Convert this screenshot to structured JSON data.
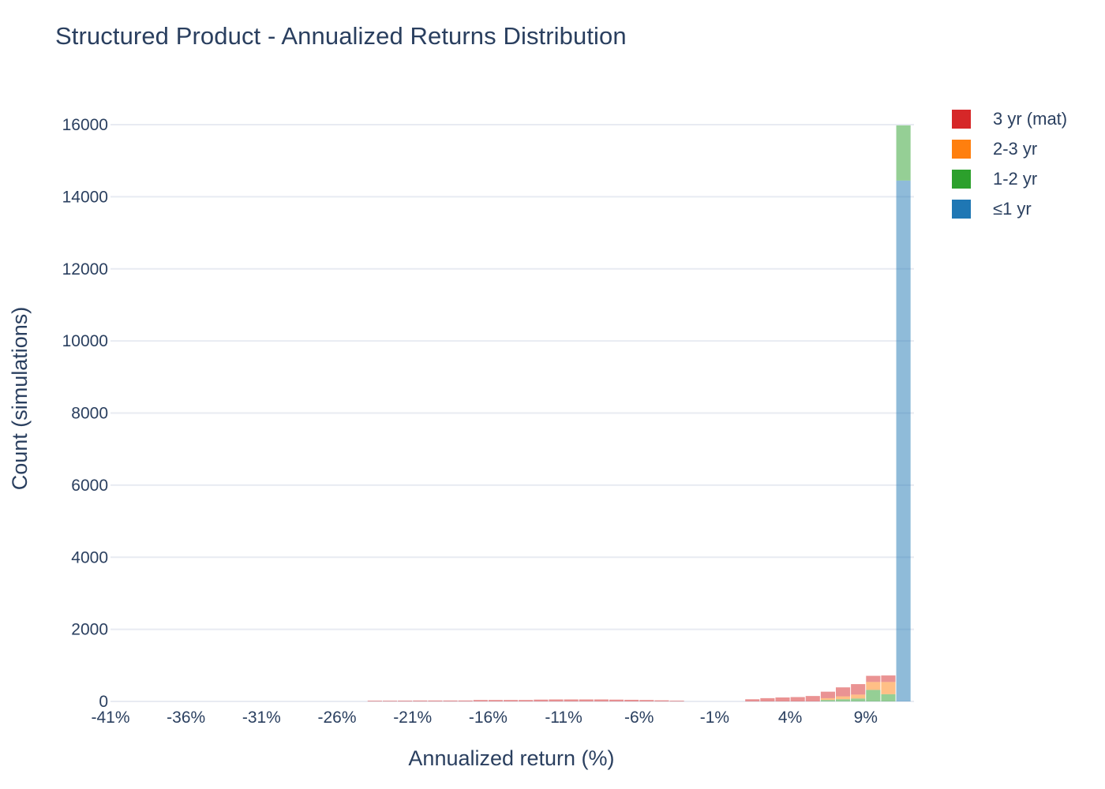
{
  "chart_data": {
    "type": "bar",
    "mode": "stacked-histogram",
    "title": "Structured Product - Annualized Returns Distribution",
    "xlabel": "Annualized return (%)",
    "ylabel": "Count (simulations)",
    "ylim": [
      0,
      16000
    ],
    "yticks": [
      0,
      2000,
      4000,
      6000,
      8000,
      10000,
      12000,
      14000,
      16000
    ],
    "xticks": [
      "-41%",
      "-36%",
      "-31%",
      "-26%",
      "-21%",
      "-16%",
      "-11%",
      "-6%",
      "-1%",
      "4%",
      "9%"
    ],
    "xtick_values": [
      -41,
      -36,
      -31,
      -26,
      -21,
      -16,
      -11,
      -6,
      -1,
      4,
      9
    ],
    "xlim": [
      -41,
      12.2
    ],
    "bin_width": 1,
    "bin_starts": [
      -24,
      -23,
      -22,
      -21,
      -20,
      -19,
      -18,
      -17,
      -16,
      -15,
      -14,
      -13,
      -12,
      -11,
      -10,
      -9,
      -8,
      -7,
      -6,
      -5,
      -4,
      -3,
      -2,
      -1,
      0,
      1,
      2,
      3,
      4,
      5,
      6,
      7,
      8,
      9,
      10,
      11
    ],
    "grid": true,
    "legend_position": "top-right",
    "series": [
      {
        "name": "≤1 yr",
        "color": "#1f77b4",
        "values": [
          0,
          0,
          0,
          0,
          0,
          0,
          0,
          0,
          0,
          0,
          0,
          0,
          0,
          0,
          0,
          0,
          0,
          0,
          0,
          0,
          0,
          0,
          0,
          0,
          0,
          0,
          0,
          0,
          0,
          0,
          0,
          0,
          0,
          0,
          0,
          14450
        ]
      },
      {
        "name": "1-2 yr",
        "color": "#2ca02c",
        "values": [
          0,
          0,
          0,
          0,
          0,
          0,
          0,
          0,
          0,
          0,
          0,
          0,
          0,
          0,
          0,
          0,
          0,
          0,
          0,
          0,
          0,
          0,
          0,
          0,
          0,
          0,
          0,
          0,
          0,
          0,
          40,
          60,
          80,
          320,
          200,
          1530
        ]
      },
      {
        "name": "2-3 yr",
        "color": "#ff7f0e",
        "values": [
          0,
          0,
          0,
          0,
          0,
          0,
          0,
          0,
          0,
          0,
          0,
          0,
          0,
          0,
          0,
          0,
          0,
          0,
          0,
          0,
          0,
          0,
          0,
          0,
          0,
          0,
          0,
          0,
          0,
          0,
          50,
          80,
          110,
          220,
          340,
          0
        ]
      },
      {
        "name": "3 yr (mat)",
        "color": "#d62728",
        "values": [
          20,
          20,
          22,
          25,
          25,
          25,
          25,
          40,
          40,
          40,
          40,
          50,
          55,
          55,
          55,
          55,
          50,
          45,
          40,
          30,
          20,
          0,
          0,
          0,
          0,
          60,
          90,
          110,
          120,
          150,
          180,
          250,
          290,
          170,
          180,
          0
        ]
      }
    ],
    "legend_order": [
      "3 yr (mat)",
      "2-3 yr",
      "1-2 yr",
      "≤1 yr"
    ]
  }
}
